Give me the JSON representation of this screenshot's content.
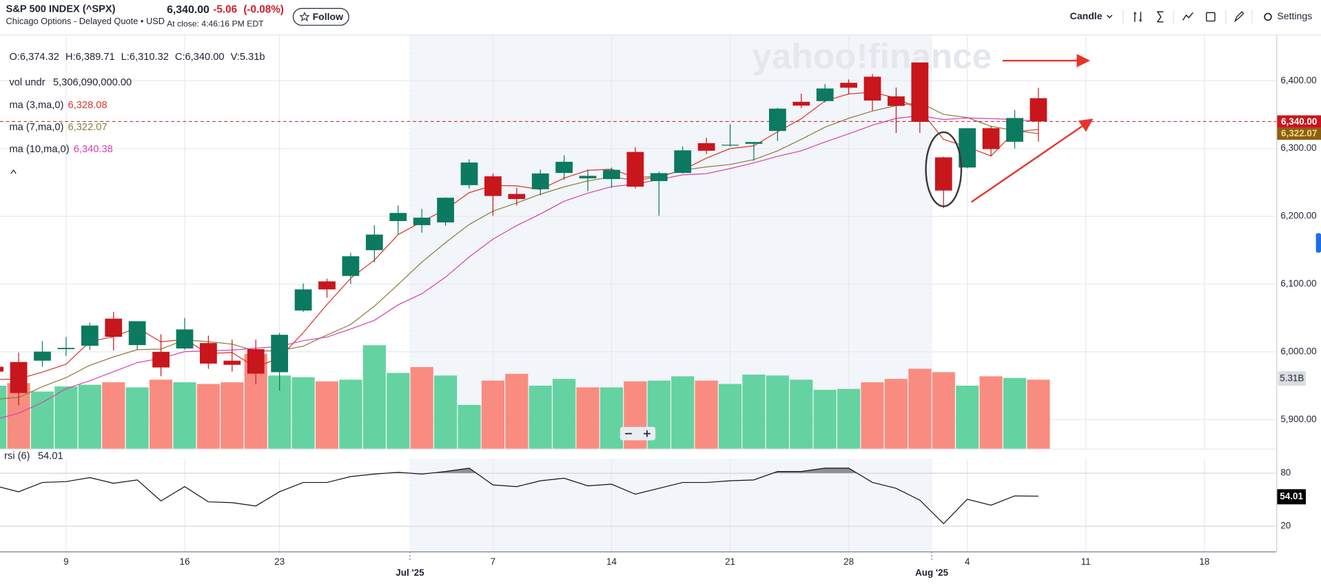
{
  "header": {
    "title": "S&P 500 INDEX (^SPX)",
    "exchange": "Chicago Options - Delayed Quote • USD",
    "price": "6,340.00",
    "change": "-5.06",
    "change_pct": "(-0.08%)",
    "close_time": "At close: 4:46:16 PM EDT",
    "follow": "Follow"
  },
  "toolbar": {
    "chart_type": "Candle",
    "settings": "Settings"
  },
  "watermark": "yahoo!finance",
  "chart_data": {
    "type": "candlestick",
    "ohlc_legend": [
      "O:6,374.32",
      "H:6,389.71",
      "L:6,310.32",
      "C:6,340.00",
      "V:5.31b"
    ],
    "categories": [
      null,
      null,
      null,
      "9",
      null,
      null,
      null,
      null,
      "16",
      null,
      null,
      null,
      "23",
      null,
      null,
      null,
      null,
      null,
      "Jul '25",
      null,
      null,
      "7",
      null,
      null,
      null,
      null,
      "14",
      null,
      null,
      null,
      null,
      "21",
      null,
      null,
      null,
      null,
      "28",
      null,
      null,
      null,
      "Aug '25",
      "4",
      null,
      null,
      null,
      null,
      "11",
      null,
      null,
      null,
      null,
      "18",
      null,
      null,
      null
    ],
    "open": [
      5978,
      5985,
      5987,
      6004,
      6009,
      6049,
      6010,
      6000,
      6005,
      6013,
      5987,
      6004,
      5970,
      6061,
      6104,
      6112,
      6150,
      6193,
      6187,
      6191,
      6246,
      6259,
      6233,
      6240,
      6264,
      6256,
      6255,
      6295,
      6252,
      6264,
      6308,
      6305,
      6307,
      6326,
      6369,
      6370,
      6397,
      6406,
      6377,
      6427,
      6287,
      6272,
      6330,
      6310,
      6374.32,
      null,
      null,
      null,
      null,
      null,
      null,
      null,
      null,
      null,
      null
    ],
    "high": [
      5991,
      5999,
      6016,
      6022,
      6043,
      6059,
      6045,
      6026,
      6050,
      6024,
      6018,
      6018,
      6028,
      6101,
      6108,
      6146,
      6187,
      6216,
      6211,
      6228,
      6284,
      6263,
      6242,
      6269,
      6290,
      6269,
      6272,
      6302,
      6266,
      6303,
      6316,
      6336,
      6310,
      6360,
      6381,
      6395,
      6402,
      6410,
      6390,
      6427,
      6288,
      6330,
      6333,
      6357,
      6389.71,
      null,
      null,
      null,
      null,
      null,
      null,
      null,
      null,
      null,
      null
    ],
    "low": [
      5966,
      5921,
      5978,
      5994,
      6003,
      6002,
      6003,
      5964,
      6003,
      5975,
      5971,
      5952,
      5943,
      6059,
      6080,
      6100,
      6132,
      6174,
      6176,
      6186,
      6241,
      6201,
      6216,
      6231,
      6254,
      6237,
      6242,
      6241,
      6201,
      6263,
      6292,
      6303,
      6282,
      6311,
      6360,
      6368,
      6380,
      6356,
      6323,
      6323,
      6212,
      6271,
      6289,
      6300,
      6310.32,
      null,
      null,
      null,
      null,
      null,
      null,
      null,
      null,
      null,
      null
    ],
    "close": [
      5970.81,
      5939.3,
      6000.36,
      6005.88,
      6038.81,
      6022.24,
      6045.26,
      5976.97,
      6033.11,
      5982.72,
      5980.87,
      5967.84,
      6025.17,
      6092.18,
      6092.16,
      6141.02,
      6173.07,
      6204.95,
      6198.01,
      6227.42,
      6279.35,
      6229.98,
      6225.52,
      6263.26,
      6280.46,
      6259.75,
      6268.56,
      6243.76,
      6263.7,
      6297.36,
      6296.79,
      6305.6,
      6309.62,
      6358.91,
      6363.35,
      6388.64,
      6389.77,
      6370.86,
      6362.9,
      6339.39,
      6238.01,
      6329.94,
      6299.19,
      6345.06,
      6340.0,
      null,
      null,
      null,
      null,
      null,
      null,
      null,
      null,
      null,
      null
    ],
    "up_color": "#0b7a60",
    "down_color": "#c8161d",
    "ylim": [
      5857,
      6467
    ],
    "yticks": [
      {
        "value": 5900,
        "label": "5,900.00"
      },
      {
        "value": 6000,
        "label": "6,000.00"
      },
      {
        "value": 6100,
        "label": "6,100.00"
      },
      {
        "value": 6200,
        "label": "6,200.00"
      },
      {
        "value": 6300,
        "label": "6,300.00"
      },
      {
        "value": 6400,
        "label": "6,400.00"
      }
    ],
    "grid": true,
    "series": [
      {
        "name": "ma (3,ma,0)",
        "color": "#d9352b",
        "value_label": "6,328.08",
        "values": [
          5959.04,
          5960.16,
          5970.16,
          5981.85,
          6015.02,
          6022.31,
          6035.44,
          6014.82,
          6018.45,
          5997.6,
          5998.9,
          5977.14,
          5991.29,
          6028.4,
          6069.84,
          6108.45,
          6135.42,
          6173.01,
          6192.01,
          6210.13,
          6234.93,
          6245.58,
          6244.95,
          6239.59,
          6256.41,
          6267.82,
          6269.59,
          6257.36,
          6258.67,
          6268.27,
          6285.95,
          6299.92,
          6304.0,
          6324.71,
          6343.96,
          6370.3,
          6380.59,
          6383.09,
          6374.51,
          6357.72,
          6313.43,
          6302.45,
          6289.05,
          6324.73,
          6328.08,
          null,
          null,
          null,
          null,
          null,
          null,
          null,
          null,
          null,
          null
        ]
      },
      {
        "name": "ma (7,ma,0)",
        "color": "#8c7a3c",
        "value_label": "6,322.07",
        "values": [
          5930.15,
          5932.69,
          5948.66,
          5962.05,
          5980.21,
          5992.54,
          6003.24,
          6004.12,
          6017.52,
          6015.0,
          6011.43,
          6001.29,
          6001.71,
          6008.41,
          6024.86,
          6040.28,
          6067.47,
          6099.48,
          6132.37,
          6161.26,
          6188.0,
          6207.69,
          6219.76,
          6232.64,
          6243.43,
          6252.25,
          6258.13,
          6253.04,
          6257.86,
          6268.12,
          6272.91,
          6276.5,
          6283.63,
          6296.53,
          6313.62,
          6331.47,
          6344.67,
          6355.25,
          6363.44,
          6367.69,
          6350.42,
          6345.64,
          6332.87,
          6326.48,
          6322.07,
          null,
          null,
          null,
          null,
          null,
          null,
          null,
          null,
          null,
          null
        ]
      },
      {
        "name": "ma (10,ma,0)",
        "color": "#d83fae",
        "value_label": "6,340.38",
        "values": [
          5900.05,
          5909.52,
          5925.36,
          5945.66,
          5957.39,
          5970.76,
          5984.07,
          5990.59,
          6000.31,
          6001.55,
          6002.55,
          6005.41,
          6007.89,
          6016.52,
          6021.85,
          6033.73,
          6046.51,
          6069.31,
          6085.8,
          6110.27,
          6140.12,
          6166.33,
          6186.37,
          6203.47,
          6222.3,
          6234.18,
          6243.73,
          6247.61,
          6254.18,
          6261.17,
          6262.91,
          6270.48,
          6278.89,
          6288.45,
          6296.74,
          6309.63,
          6321.75,
          6334.46,
          6344.38,
          6348.58,
          6342.71,
          6345.14,
          6344.1,
          6342.71,
          6340.38,
          null,
          null,
          null,
          null,
          null,
          null,
          null,
          null,
          null,
          null
        ]
      }
    ],
    "volume": {
      "name": "vol undr",
      "legend_value": "5,306,090,000.00",
      "value_label": "5.31B",
      "lim": [
        0,
        31.77
      ],
      "values": [
        4.85,
        5.05,
        4.4,
        4.79,
        4.92,
        5.11,
        4.72,
        5.31,
        5.11,
        4.98,
        5.11,
        7.3,
        5.63,
        5.5,
        5.18,
        5.31,
        7.96,
        5.83,
        6.28,
        5.63,
        3.37,
        5.24,
        5.76,
        4.85,
        5.37,
        4.72,
        4.72,
        5.18,
        5.24,
        5.57,
        5.24,
        4.98,
        5.7,
        5.63,
        5.31,
        4.53,
        4.6,
        5.11,
        5.37,
        6.15,
        5.89,
        4.85,
        5.57,
        5.44,
        5.31,
        null,
        null,
        null,
        null,
        null,
        null,
        null,
        null,
        null,
        null
      ],
      "colors": [
        "#64d3a1",
        "#f98c80",
        "#64d3a1",
        "#64d3a1",
        "#64d3a1",
        "#f98c80",
        "#64d3a1",
        "#f98c80",
        "#64d3a1",
        "#f98c80",
        "#f98c80",
        "#f98c80",
        "#64d3a1",
        "#64d3a1",
        "#f98c80",
        "#64d3a1",
        "#64d3a1",
        "#64d3a1",
        "#f98c80",
        "#64d3a1",
        "#64d3a1",
        "#f98c80",
        "#f98c80",
        "#64d3a1",
        "#64d3a1",
        "#f98c80",
        "#64d3a1",
        "#f98c80",
        "#64d3a1",
        "#64d3a1",
        "#f98c80",
        "#64d3a1",
        "#64d3a1",
        "#64d3a1",
        "#64d3a1",
        "#64d3a1",
        "#64d3a1",
        "#f98c80",
        "#f98c80",
        "#f98c80",
        "#f98c80",
        "#64d3a1",
        "#f98c80",
        "#64d3a1",
        "#f98c80",
        null,
        null,
        null,
        null,
        null,
        null,
        null,
        null,
        null,
        null
      ]
    },
    "rsi": {
      "name": "rsi (6)",
      "value_label": "54.01",
      "color": "#111111",
      "lim": [
        -8.6,
        96.2
      ],
      "ticks": [
        80,
        20
      ],
      "values": [
        65.7,
        59,
        69.5,
        70.5,
        75,
        68.6,
        72.4,
        48.6,
        64.8,
        47.6,
        46.7,
        42.9,
        59,
        69.5,
        69.5,
        76.2,
        79,
        81,
        79,
        81.9,
        85.7,
        66.7,
        64.8,
        71.4,
        74.3,
        65.7,
        67.6,
        56.2,
        62.9,
        69.5,
        69.5,
        71.4,
        72.4,
        81.9,
        81.9,
        85.7,
        85.7,
        69.5,
        62.9,
        49.5,
        22.9,
        50.5,
        43.8,
        54.3,
        54.01,
        null,
        null,
        null,
        null,
        null,
        null,
        null,
        null,
        null,
        null
      ]
    }
  }
}
